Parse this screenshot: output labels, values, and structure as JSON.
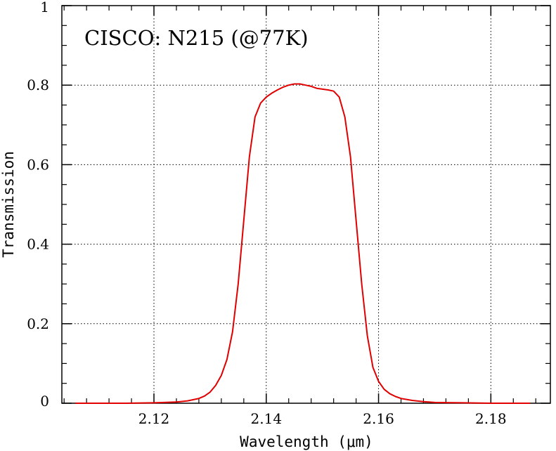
{
  "chart_data": {
    "type": "line",
    "title": "CISCO: N215 (@77K)",
    "xlabel": "Wavelength (μm)",
    "ylabel": "Transmission",
    "xlim": [
      2.1036,
      2.1906
    ],
    "ylim": [
      0,
      1
    ],
    "grid": true,
    "x_ticks": [
      2.12,
      2.14,
      2.16,
      2.18
    ],
    "x_tick_labels": [
      "2.12",
      "2.14",
      "2.16",
      "2.18"
    ],
    "y_ticks": [
      0,
      0.2,
      0.4,
      0.6,
      0.8,
      1
    ],
    "y_tick_labels": [
      "0",
      "0.2",
      "0.4",
      "0.6",
      "0.8",
      "1"
    ],
    "series": [
      {
        "name": "N215 transmission",
        "color": "#e00000",
        "x": [
          2.106,
          2.11,
          2.115,
          2.12,
          2.124,
          2.126,
          2.128,
          2.129,
          2.13,
          2.131,
          2.132,
          2.133,
          2.134,
          2.135,
          2.136,
          2.137,
          2.138,
          2.139,
          2.14,
          2.141,
          2.142,
          2.143,
          2.144,
          2.145,
          2.146,
          2.147,
          2.148,
          2.149,
          2.15,
          2.151,
          2.152,
          2.153,
          2.154,
          2.155,
          2.156,
          2.157,
          2.158,
          2.159,
          2.16,
          2.161,
          2.162,
          2.163,
          2.164,
          2.166,
          2.168,
          2.17,
          2.175,
          2.18,
          2.187
        ],
        "y": [
          0.0,
          0.0,
          0.0,
          0.001,
          0.003,
          0.006,
          0.012,
          0.018,
          0.028,
          0.045,
          0.07,
          0.11,
          0.18,
          0.3,
          0.46,
          0.62,
          0.72,
          0.755,
          0.77,
          0.78,
          0.788,
          0.795,
          0.8,
          0.803,
          0.803,
          0.8,
          0.797,
          0.792,
          0.79,
          0.788,
          0.785,
          0.77,
          0.72,
          0.62,
          0.46,
          0.3,
          0.17,
          0.09,
          0.055,
          0.035,
          0.024,
          0.017,
          0.012,
          0.007,
          0.004,
          0.002,
          0.001,
          0.0,
          0.0
        ]
      }
    ]
  }
}
